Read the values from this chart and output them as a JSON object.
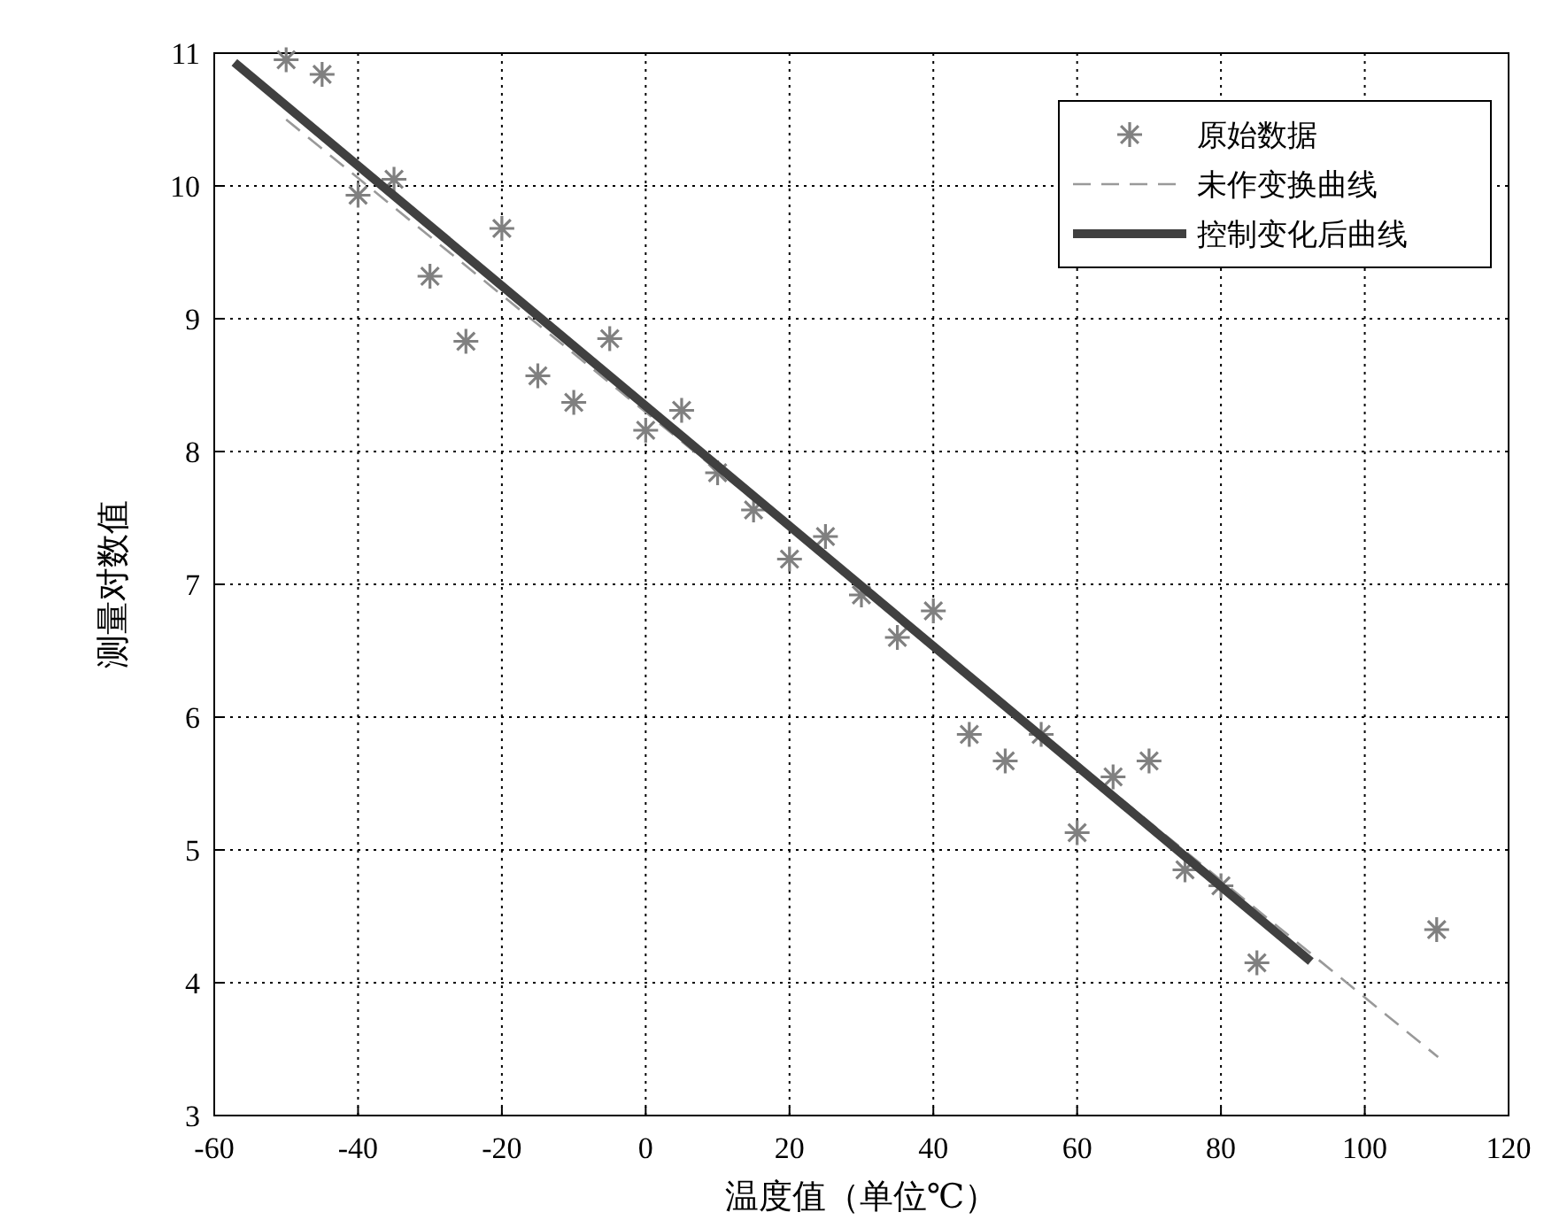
{
  "chart_data": {
    "type": "scatter",
    "xlabel": "温度值（单位℃）",
    "ylabel": "测量对数值",
    "xlim": [
      -60,
      120
    ],
    "xticks": [
      -60,
      -40,
      -20,
      0,
      20,
      40,
      60,
      80,
      100,
      120
    ],
    "ylim": [
      3,
      11
    ],
    "yticks": [
      3,
      4,
      5,
      6,
      7,
      8,
      9,
      10,
      11
    ],
    "grid": true,
    "legend": "top right",
    "series": [
      {
        "name": "原始数据",
        "marker": "cross",
        "color": "#808080",
        "x": [
          -50,
          -45,
          -40,
          -35,
          -30,
          -25,
          -20,
          -15,
          -10,
          -5,
          0,
          5,
          10,
          15,
          20,
          25,
          30,
          35,
          40,
          45,
          50,
          55,
          60,
          65,
          70,
          75,
          80,
          85,
          110
        ],
        "values": [
          10.95,
          10.84,
          9.93,
          10.05,
          9.32,
          8.83,
          9.68,
          8.57,
          8.37,
          8.85,
          8.16,
          8.31,
          7.84,
          7.56,
          7.19,
          7.36,
          6.92,
          6.6,
          6.8,
          5.87,
          5.67,
          5.87,
          5.13,
          5.55,
          5.67,
          4.85,
          4.73,
          4.15,
          4.4
        ]
      },
      {
        "name": "未作变换曲线",
        "type": "line",
        "line_style": "dashed",
        "color": "#999999",
        "x": [
          -50,
          110.2
        ],
        "values": [
          10.5,
          3.44
        ]
      },
      {
        "name": "控制变化后曲线",
        "type": "line",
        "line_style": "solid",
        "color": "#404040",
        "x": [
          -57.2,
          92.5
        ],
        "values": [
          10.93,
          4.16
        ]
      }
    ]
  }
}
